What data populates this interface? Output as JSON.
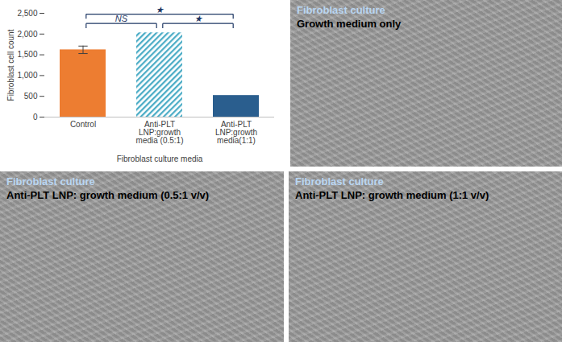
{
  "chart_data": {
    "type": "bar",
    "categories": [
      "Control",
      "Anti-PLT LNP:growth media  (0.5:1)",
      "Anti-PLT LNP:growth media(1:1)"
    ],
    "values": [
      1620,
      2030,
      520
    ],
    "errors": [
      90,
      null,
      null
    ],
    "colors": [
      "#ED7D31",
      "#4BACC6",
      "#2A5E8E"
    ],
    "ylabel": "Fibroblast cell count",
    "xlabel": "Fibroblast culture media",
    "ylim": [
      0,
      2500
    ],
    "yticks": [
      0,
      500,
      1000,
      1500,
      2000,
      2500
    ],
    "grid": false,
    "annotations": [
      {
        "text": "NS",
        "from": 0,
        "to": 1
      },
      {
        "text": "★",
        "from": 0,
        "to": 2
      },
      {
        "text": "★",
        "from": 1,
        "to": 2
      }
    ]
  },
  "panels": [
    {
      "title": "Fibroblast culture",
      "caption": "Growth medium only"
    },
    {
      "title": "Fibroblast culture",
      "caption": "Anti-PLT LNP: growth medium (0.5:1 v/v)"
    },
    {
      "title": "Fibroblast culture",
      "caption": "Anti-PLT LNP: growth medium (1:1 v/v)"
    }
  ]
}
